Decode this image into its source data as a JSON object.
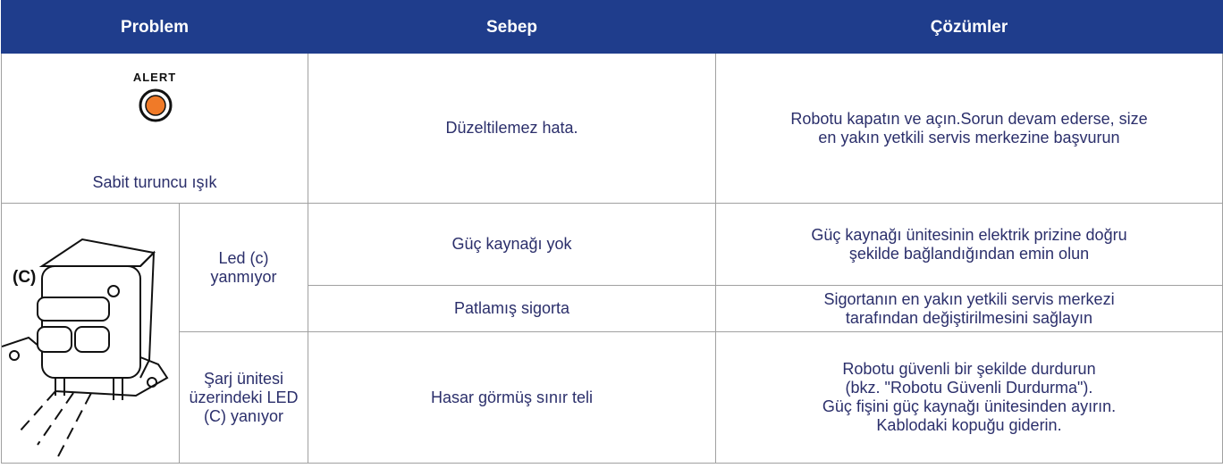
{
  "table": {
    "header": [
      "Problem",
      "Sebep",
      "Çözümler"
    ],
    "rows": [
      {
        "indicator_label": "ALERT",
        "problem": "Sabit turuncu ışık",
        "cause": "Düzeltilemez hata.",
        "solution": [
          "Robotu kapatın ve açın.Sorun devam ederse, size",
          "en yakın yetkili servis merkezine başvurun"
        ]
      },
      {
        "image_label": "(C)",
        "problem": "Led (c) yanmıyor",
        "cause": "Güç kaynağı yok",
        "solution": [
          "Güç kaynağı ünitesinin elektrik prizine doğru",
          "şekilde bağlandığından emin olun"
        ]
      },
      {
        "cause": "Patlamış sigorta",
        "solution": [
          "Sigortanın en yakın yetkili servis merkezi",
          "tarafından değiştirilmesini sağlayın"
        ]
      },
      {
        "problem": "Şarj ünitesi üzerindeki LED (C) yanıyor",
        "cause": "Hasar görmüş sınır teli",
        "solution": [
          "Robotu güvenli bir şekilde durdurun",
          "(bkz. \"Robotu Güvenli Durdurma\").",
          "Güç fişini güç kaynağı ünitesinden ayırın.",
          "Kablodaki kopuğu giderin."
        ]
      }
    ]
  }
}
